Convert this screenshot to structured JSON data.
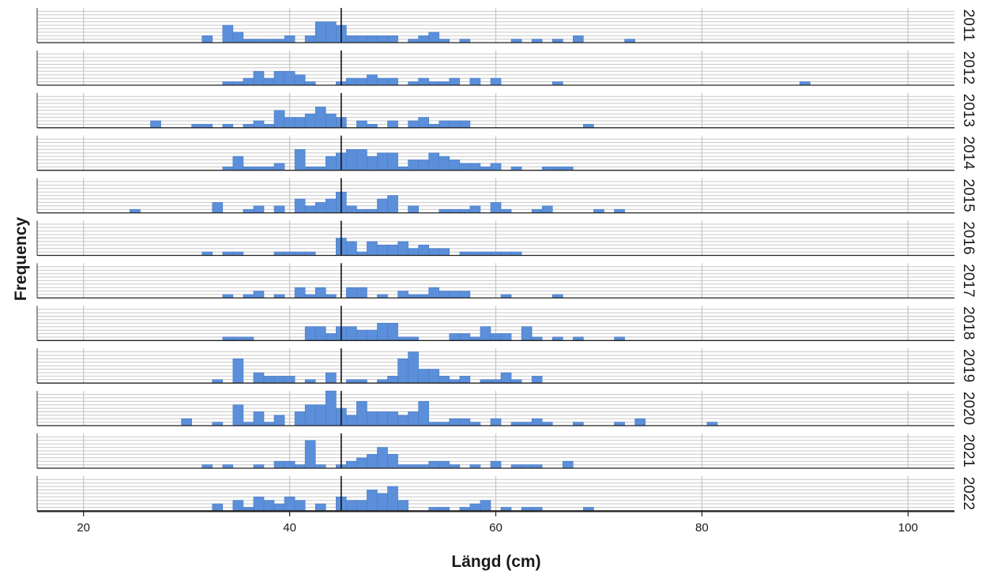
{
  "chart_data": {
    "type": "bar",
    "subtype": "faceted-histogram",
    "xlabel": "Längd (cm)",
    "ylabel": "Frequency",
    "xlim": [
      15.5,
      104.5
    ],
    "x_ticks": [
      20,
      40,
      60,
      80,
      100
    ],
    "bin_width": 1,
    "reference_line_x": 45,
    "horizontal_grid": true,
    "vertical_grid": true,
    "bar_color": "#5b8fd9",
    "bar_edge_color": "#4a7cc7",
    "facet_label_position": "right",
    "facets": [
      {
        "label": "2011",
        "bars": [
          [
            32,
            2
          ],
          [
            34,
            5
          ],
          [
            35,
            3
          ],
          [
            36,
            1
          ],
          [
            37,
            1
          ],
          [
            38,
            1
          ],
          [
            39,
            1
          ],
          [
            40,
            2
          ],
          [
            42,
            2
          ],
          [
            43,
            6
          ],
          [
            44,
            6
          ],
          [
            45,
            5
          ],
          [
            46,
            2
          ],
          [
            47,
            2
          ],
          [
            48,
            2
          ],
          [
            49,
            2
          ],
          [
            50,
            2
          ],
          [
            52,
            1
          ],
          [
            53,
            2
          ],
          [
            54,
            3
          ],
          [
            55,
            1
          ],
          [
            57,
            1
          ],
          [
            62,
            1
          ],
          [
            64,
            1
          ],
          [
            66,
            1
          ],
          [
            68,
            2
          ],
          [
            73,
            1
          ]
        ]
      },
      {
        "label": "2012",
        "bars": [
          [
            34,
            1
          ],
          [
            35,
            1
          ],
          [
            36,
            2
          ],
          [
            37,
            4
          ],
          [
            38,
            2
          ],
          [
            39,
            4
          ],
          [
            40,
            4
          ],
          [
            41,
            3
          ],
          [
            42,
            1
          ],
          [
            45,
            1
          ],
          [
            46,
            2
          ],
          [
            47,
            2
          ],
          [
            48,
            3
          ],
          [
            49,
            2
          ],
          [
            50,
            2
          ],
          [
            52,
            1
          ],
          [
            53,
            2
          ],
          [
            54,
            1
          ],
          [
            55,
            1
          ],
          [
            56,
            2
          ],
          [
            58,
            2
          ],
          [
            60,
            2
          ],
          [
            66,
            1
          ],
          [
            90,
            1
          ]
        ]
      },
      {
        "label": "2013",
        "bars": [
          [
            27,
            2
          ],
          [
            31,
            1
          ],
          [
            32,
            1
          ],
          [
            34,
            1
          ],
          [
            36,
            1
          ],
          [
            37,
            2
          ],
          [
            38,
            1
          ],
          [
            39,
            5
          ],
          [
            40,
            3
          ],
          [
            41,
            3
          ],
          [
            42,
            4
          ],
          [
            43,
            6
          ],
          [
            44,
            4
          ],
          [
            45,
            3
          ],
          [
            47,
            2
          ],
          [
            48,
            1
          ],
          [
            50,
            2
          ],
          [
            52,
            2
          ],
          [
            53,
            3
          ],
          [
            54,
            1
          ],
          [
            55,
            2
          ],
          [
            56,
            2
          ],
          [
            57,
            2
          ],
          [
            69,
            1
          ]
        ]
      },
      {
        "label": "2014",
        "bars": [
          [
            34,
            1
          ],
          [
            35,
            4
          ],
          [
            36,
            1
          ],
          [
            37,
            1
          ],
          [
            38,
            1
          ],
          [
            39,
            2
          ],
          [
            41,
            6
          ],
          [
            42,
            1
          ],
          [
            43,
            1
          ],
          [
            44,
            4
          ],
          [
            45,
            5
          ],
          [
            46,
            6
          ],
          [
            47,
            6
          ],
          [
            48,
            4
          ],
          [
            49,
            5
          ],
          [
            50,
            5
          ],
          [
            51,
            1
          ],
          [
            52,
            3
          ],
          [
            53,
            3
          ],
          [
            54,
            5
          ],
          [
            55,
            4
          ],
          [
            56,
            3
          ],
          [
            57,
            2
          ],
          [
            58,
            2
          ],
          [
            59,
            1
          ],
          [
            60,
            2
          ],
          [
            62,
            1
          ],
          [
            65,
            1
          ],
          [
            66,
            1
          ],
          [
            67,
            1
          ]
        ]
      },
      {
        "label": "2015",
        "bars": [
          [
            25,
            1
          ],
          [
            33,
            3
          ],
          [
            36,
            1
          ],
          [
            37,
            2
          ],
          [
            39,
            2
          ],
          [
            41,
            4
          ],
          [
            42,
            2
          ],
          [
            43,
            3
          ],
          [
            44,
            4
          ],
          [
            45,
            6
          ],
          [
            46,
            2
          ],
          [
            47,
            1
          ],
          [
            48,
            1
          ],
          [
            49,
            4
          ],
          [
            50,
            5
          ],
          [
            52,
            2
          ],
          [
            55,
            1
          ],
          [
            56,
            1
          ],
          [
            57,
            1
          ],
          [
            58,
            2
          ],
          [
            60,
            3
          ],
          [
            61,
            1
          ],
          [
            64,
            1
          ],
          [
            65,
            2
          ],
          [
            70,
            1
          ],
          [
            72,
            1
          ]
        ]
      },
      {
        "label": "2016",
        "bars": [
          [
            32,
            1
          ],
          [
            34,
            1
          ],
          [
            35,
            1
          ],
          [
            39,
            1
          ],
          [
            40,
            1
          ],
          [
            41,
            1
          ],
          [
            42,
            1
          ],
          [
            45,
            5
          ],
          [
            46,
            4
          ],
          [
            47,
            1
          ],
          [
            48,
            4
          ],
          [
            49,
            3
          ],
          [
            50,
            3
          ],
          [
            51,
            4
          ],
          [
            52,
            2
          ],
          [
            53,
            3
          ],
          [
            54,
            2
          ],
          [
            55,
            2
          ],
          [
            57,
            1
          ],
          [
            58,
            1
          ],
          [
            59,
            1
          ],
          [
            60,
            1
          ],
          [
            61,
            1
          ],
          [
            62,
            1
          ]
        ]
      },
      {
        "label": "2017",
        "bars": [
          [
            34,
            1
          ],
          [
            36,
            1
          ],
          [
            37,
            2
          ],
          [
            39,
            1
          ],
          [
            41,
            3
          ],
          [
            42,
            1
          ],
          [
            43,
            3
          ],
          [
            44,
            1
          ],
          [
            46,
            3
          ],
          [
            47,
            3
          ],
          [
            49,
            1
          ],
          [
            51,
            2
          ],
          [
            52,
            1
          ],
          [
            53,
            1
          ],
          [
            54,
            3
          ],
          [
            55,
            2
          ],
          [
            56,
            2
          ],
          [
            57,
            2
          ],
          [
            61,
            1
          ],
          [
            66,
            1
          ]
        ]
      },
      {
        "label": "2018",
        "bars": [
          [
            34,
            1
          ],
          [
            35,
            1
          ],
          [
            36,
            1
          ],
          [
            42,
            4
          ],
          [
            43,
            4
          ],
          [
            44,
            2
          ],
          [
            45,
            4
          ],
          [
            46,
            4
          ],
          [
            47,
            3
          ],
          [
            48,
            3
          ],
          [
            49,
            5
          ],
          [
            50,
            5
          ],
          [
            51,
            1
          ],
          [
            52,
            1
          ],
          [
            56,
            2
          ],
          [
            57,
            2
          ],
          [
            58,
            1
          ],
          [
            59,
            4
          ],
          [
            60,
            2
          ],
          [
            61,
            2
          ],
          [
            63,
            4
          ],
          [
            64,
            1
          ],
          [
            66,
            1
          ],
          [
            68,
            1
          ],
          [
            72,
            1
          ]
        ]
      },
      {
        "label": "2019",
        "bars": [
          [
            33,
            1
          ],
          [
            35,
            7
          ],
          [
            37,
            3
          ],
          [
            38,
            2
          ],
          [
            39,
            2
          ],
          [
            40,
            2
          ],
          [
            42,
            1
          ],
          [
            44,
            3
          ],
          [
            46,
            1
          ],
          [
            47,
            1
          ],
          [
            49,
            1
          ],
          [
            50,
            2
          ],
          [
            51,
            7
          ],
          [
            52,
            9
          ],
          [
            53,
            4
          ],
          [
            54,
            4
          ],
          [
            55,
            2
          ],
          [
            56,
            1
          ],
          [
            57,
            2
          ],
          [
            59,
            1
          ],
          [
            60,
            1
          ],
          [
            61,
            3
          ],
          [
            62,
            1
          ],
          [
            64,
            2
          ]
        ]
      },
      {
        "label": "2020",
        "bars": [
          [
            30,
            2
          ],
          [
            33,
            1
          ],
          [
            35,
            6
          ],
          [
            36,
            1
          ],
          [
            37,
            4
          ],
          [
            38,
            1
          ],
          [
            39,
            3
          ],
          [
            41,
            4
          ],
          [
            42,
            6
          ],
          [
            43,
            6
          ],
          [
            44,
            10
          ],
          [
            45,
            5
          ],
          [
            46,
            3
          ],
          [
            47,
            7
          ],
          [
            48,
            4
          ],
          [
            49,
            4
          ],
          [
            50,
            4
          ],
          [
            51,
            3
          ],
          [
            52,
            4
          ],
          [
            53,
            7
          ],
          [
            54,
            1
          ],
          [
            55,
            1
          ],
          [
            56,
            2
          ],
          [
            57,
            2
          ],
          [
            58,
            1
          ],
          [
            60,
            2
          ],
          [
            62,
            1
          ],
          [
            63,
            1
          ],
          [
            64,
            2
          ],
          [
            65,
            1
          ],
          [
            68,
            1
          ],
          [
            72,
            1
          ],
          [
            74,
            2
          ],
          [
            81,
            1
          ]
        ]
      },
      {
        "label": "2021",
        "bars": [
          [
            32,
            1
          ],
          [
            34,
            1
          ],
          [
            37,
            1
          ],
          [
            39,
            2
          ],
          [
            40,
            2
          ],
          [
            41,
            1
          ],
          [
            42,
            8
          ],
          [
            43,
            1
          ],
          [
            45,
            1
          ],
          [
            46,
            2
          ],
          [
            47,
            3
          ],
          [
            48,
            4
          ],
          [
            49,
            6
          ],
          [
            50,
            4
          ],
          [
            51,
            1
          ],
          [
            52,
            1
          ],
          [
            53,
            1
          ],
          [
            54,
            2
          ],
          [
            55,
            2
          ],
          [
            56,
            1
          ],
          [
            58,
            1
          ],
          [
            60,
            2
          ],
          [
            62,
            1
          ],
          [
            63,
            1
          ],
          [
            64,
            1
          ],
          [
            67,
            2
          ]
        ]
      },
      {
        "label": "2022",
        "bars": [
          [
            33,
            2
          ],
          [
            35,
            3
          ],
          [
            36,
            1
          ],
          [
            37,
            4
          ],
          [
            38,
            3
          ],
          [
            39,
            2
          ],
          [
            40,
            4
          ],
          [
            41,
            3
          ],
          [
            43,
            2
          ],
          [
            45,
            4
          ],
          [
            46,
            3
          ],
          [
            47,
            3
          ],
          [
            48,
            6
          ],
          [
            49,
            5
          ],
          [
            50,
            7
          ],
          [
            51,
            3
          ],
          [
            54,
            1
          ],
          [
            55,
            1
          ],
          [
            57,
            1
          ],
          [
            58,
            2
          ],
          [
            59,
            3
          ],
          [
            61,
            1
          ],
          [
            63,
            1
          ],
          [
            64,
            1
          ],
          [
            69,
            1
          ]
        ]
      }
    ]
  }
}
